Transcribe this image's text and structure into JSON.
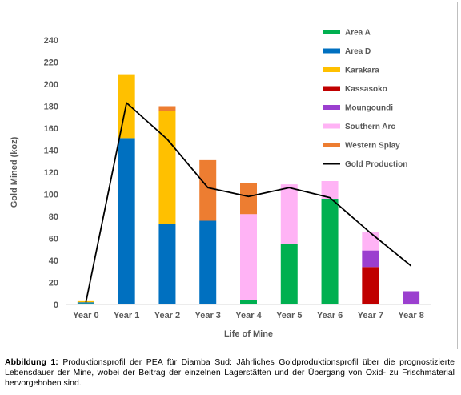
{
  "chart_data": {
    "type": "bar",
    "stacked": true,
    "title": "",
    "xlabel": "Life of Mine",
    "ylabel": "Gold Mined (koz)",
    "ylim": [
      0,
      240
    ],
    "yticks": [
      0,
      20,
      40,
      60,
      80,
      100,
      120,
      140,
      160,
      180,
      200,
      220,
      240
    ],
    "grid": false,
    "legend_position": "right",
    "categories": [
      "Year 0",
      "Year 1",
      "Year 2",
      "Year 3",
      "Year 4",
      "Year 5",
      "Year 6",
      "Year 7",
      "Year 8"
    ],
    "series": [
      {
        "name": "Area A",
        "color": "#00b050",
        "values": [
          1,
          0,
          0,
          0,
          4,
          55,
          96,
          0,
          0
        ]
      },
      {
        "name": "Area D",
        "color": "#0070c0",
        "values": [
          1,
          151,
          73,
          76,
          0,
          0,
          0,
          0,
          0
        ]
      },
      {
        "name": "Karakara",
        "color": "#ffc000",
        "values": [
          1,
          58,
          103,
          0,
          0,
          0,
          0,
          0,
          0
        ]
      },
      {
        "name": "Kassasoko",
        "color": "#c00000",
        "values": [
          0,
          0,
          0,
          0,
          0,
          0,
          0,
          34,
          0
        ]
      },
      {
        "name": "Moungoundi",
        "color": "#9b3fcf",
        "values": [
          0,
          0,
          0,
          0,
          0,
          0,
          0,
          15,
          12
        ]
      },
      {
        "name": "Southern Arc",
        "color": "#ffb3f5",
        "values": [
          0,
          0,
          0,
          0,
          78,
          54,
          16,
          17,
          0
        ]
      },
      {
        "name": "Western Splay",
        "color": "#ed7d31",
        "values": [
          0,
          0,
          4,
          55,
          28,
          0,
          0,
          0,
          0
        ]
      }
    ],
    "line_series": {
      "name": "Gold Production",
      "color": "#000000",
      "values": [
        2,
        183,
        150,
        106,
        98,
        106,
        97,
        65,
        35
      ]
    }
  },
  "caption": {
    "label": "Abbildung 1:",
    "text": "Produktionsprofil der PEA für Diamba Sud: Jährliches Goldproduktionsprofil über die prognostizierte Lebensdauer der Mine, wobei der Beitrag der einzelnen Lagerstätten und der Übergang von Oxid- zu Frischmaterial hervorgehoben sind."
  }
}
